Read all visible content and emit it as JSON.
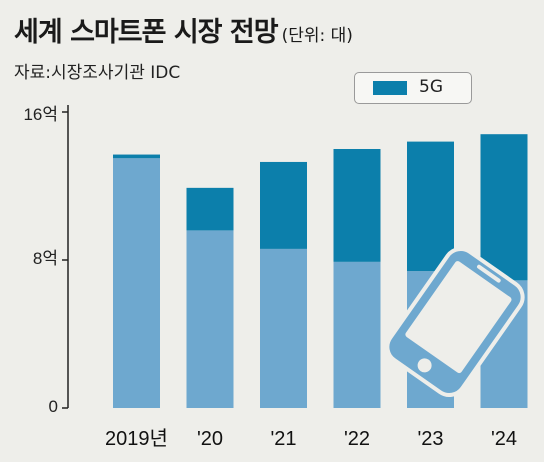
{
  "header": {
    "title": "세계 스마트폰 시장 전망",
    "unit": "(단위: 대)",
    "source": "자료:시장조사기관 IDC"
  },
  "colors": {
    "background": "#eeeeea",
    "total_bar": "#6ea8cf",
    "fiveg_bar": "#0c7fab",
    "phone_icon": "#6ea8cf"
  },
  "chart_data": {
    "type": "bar",
    "stacked": true,
    "categories": [
      "2019년",
      "'20",
      "'21",
      "'22",
      "'23",
      "'24"
    ],
    "series": [
      {
        "name": "",
        "values": [
          13.5,
          9.6,
          8.6,
          7.9,
          7.4,
          6.9
        ]
      },
      {
        "name": "5G",
        "values": [
          0.2,
          2.3,
          4.7,
          6.1,
          7.0,
          7.9
        ]
      }
    ],
    "y_tick_labels": [
      "0",
      "8억",
      "16억"
    ],
    "ylim": [
      0,
      16
    ],
    "legend": {
      "entries": [
        "5G"
      ],
      "placement": "top-right"
    },
    "grid": false
  },
  "icon": "smartphone-icon"
}
